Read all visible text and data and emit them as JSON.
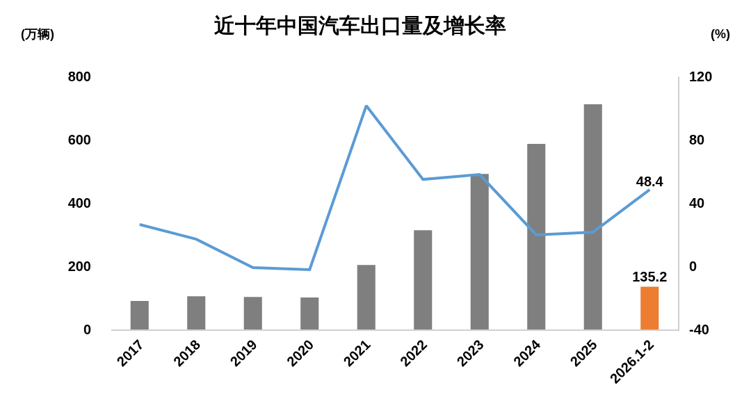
{
  "chart_data": {
    "type": "bar",
    "title": "近十年中国汽车出口量及增长率",
    "ylabel": "(万辆)",
    "y2label": "(%)",
    "categories": [
      "2017",
      "2018",
      "2019",
      "2020",
      "2021",
      "2022",
      "2023",
      "2024",
      "2025",
      "2026.1-2"
    ],
    "series": [
      {
        "colors": [
          "#7f7f7f",
          "#7f7f7f",
          "#7f7f7f",
          "#7f7f7f",
          "#7f7f7f",
          "#7f7f7f",
          "#7f7f7f",
          "#7f7f7f",
          "#7f7f7f",
          "#ed7d31"
        ],
        "values": [
          90,
          105,
          103,
          101,
          204,
          314,
          492,
          587,
          712,
          135.2
        ],
        "value_labels": [
          null,
          null,
          null,
          null,
          null,
          null,
          null,
          null,
          null,
          "135.2"
        ]
      },
      {
        "type": "line",
        "axis": "y2",
        "color": "#5b9bd5",
        "values": [
          26.4,
          17.1,
          -0.9,
          -2.2,
          101.5,
          54.9,
          58,
          19.8,
          21.5,
          48.4
        ],
        "value_labels": [
          null,
          null,
          null,
          null,
          null,
          null,
          null,
          null,
          null,
          "48.4"
        ]
      }
    ],
    "ylim": [
      0,
      800
    ],
    "yticks": [
      0,
      200,
      400,
      600,
      800
    ],
    "y2lim": [
      -40,
      120
    ],
    "y2ticks": [
      -40,
      0,
      40,
      80,
      120
    ],
    "grid": false,
    "legend": false,
    "marker": "none",
    "line_style": "solid"
  }
}
